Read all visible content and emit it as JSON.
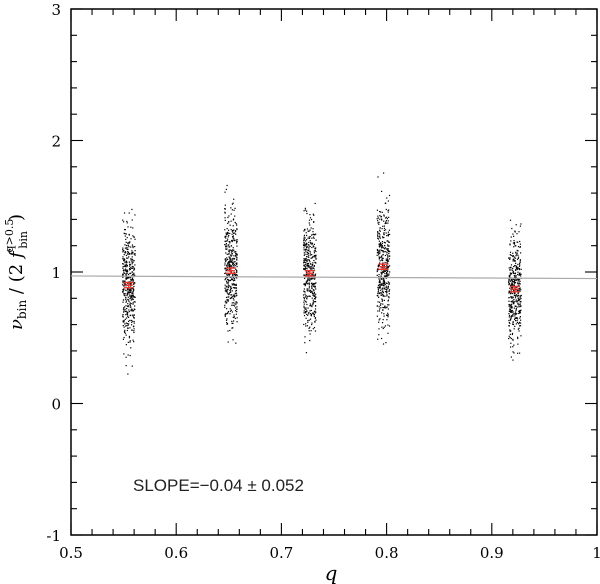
{
  "chart_data": {
    "type": "scatter",
    "title": "",
    "xlabel": "q",
    "ylabel": {
      "nu": "ν",
      "nu_sub": "bin",
      "slash_open": " / (2 ",
      "f": "f",
      "f_sub": "bin",
      "f_sup": "q>0.5",
      "close": ")"
    },
    "xlim": [
      0.5,
      1.0
    ],
    "ylim": [
      -1,
      3
    ],
    "x_ticks": [
      "0.5",
      "0.6",
      "0.7",
      "0.8",
      "0.9",
      "1"
    ],
    "y_ticks": [
      "-1",
      "0",
      "1",
      "2",
      "3"
    ],
    "grid": false,
    "annotation": "SLOPE=−0.04 ± 0.052",
    "fit_line": {
      "x": [
        0.5,
        1.0
      ],
      "y": [
        0.97,
        0.95
      ],
      "color": "#aaaaaa"
    },
    "clusters": [
      {
        "x": 0.555,
        "y_min": 0.21,
        "y_max": 1.62,
        "mean": 0.9,
        "err": 0.02
      },
      {
        "x": 0.652,
        "y_min": 0.45,
        "y_max": 1.78,
        "mean": 1.01,
        "err": 0.02
      },
      {
        "x": 0.727,
        "y_min": 0.35,
        "y_max": 1.67,
        "mean": 0.99,
        "err": 0.02
      },
      {
        "x": 0.797,
        "y_min": 0.37,
        "y_max": 1.78,
        "mean": 1.04,
        "err": 0.02
      },
      {
        "x": 0.922,
        "y_min": 0.21,
        "y_max": 1.51,
        "mean": 0.87,
        "err": 0.02
      }
    ],
    "colors": {
      "points": "#000000",
      "means": "#e8382f",
      "fit": "#aaaaaa"
    }
  }
}
